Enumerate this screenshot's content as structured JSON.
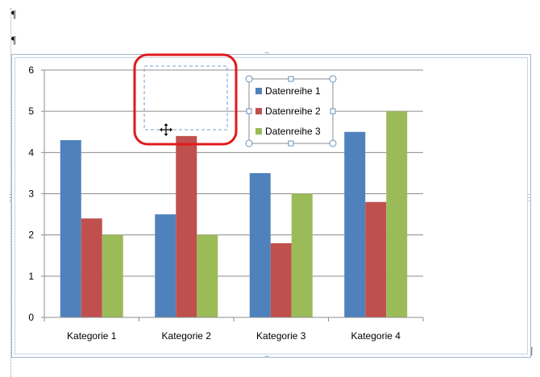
{
  "document": {
    "paragraph_mark": "¶"
  },
  "chart_data": {
    "type": "bar",
    "categories": [
      "Kategorie 1",
      "Kategorie 2",
      "Kategorie 3",
      "Kategorie 4"
    ],
    "series": [
      {
        "name": "Datenreihe 1",
        "values": [
          4.3,
          2.5,
          3.5,
          4.5
        ],
        "color": "#4f81bd"
      },
      {
        "name": "Datenreihe 2",
        "values": [
          2.4,
          4.4,
          1.8,
          2.8
        ],
        "color": "#c0504d"
      },
      {
        "name": "Datenreihe 3",
        "values": [
          2.0,
          2.0,
          3.0,
          5.0
        ],
        "color": "#9bbb59"
      }
    ],
    "ylim": [
      0,
      6
    ],
    "yticks": [
      "0",
      "1",
      "2",
      "3",
      "4",
      "5",
      "6"
    ],
    "grid": true,
    "legend_position": "top-right"
  },
  "colors": {
    "highlight": "#e0191d",
    "selection_dashed": "#8fb4db",
    "handle": "#6f8fb0"
  },
  "icons": {
    "move_cursor": "four-way-arrow-icon"
  }
}
